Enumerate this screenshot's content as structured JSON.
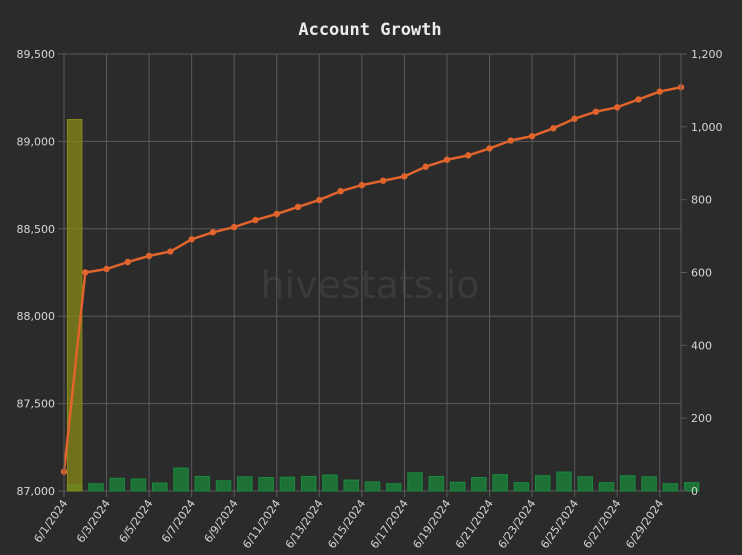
{
  "chart_data": {
    "type": "bar+line",
    "title": "Account Growth",
    "watermark": "hivestats.io",
    "x": [
      "6/1/2024",
      "6/2/2024",
      "6/3/2024",
      "6/4/2024",
      "6/5/2024",
      "6/6/2024",
      "6/7/2024",
      "6/8/2024",
      "6/9/2024",
      "6/10/2024",
      "6/11/2024",
      "6/12/2024",
      "6/13/2024",
      "6/14/2024",
      "6/15/2024",
      "6/16/2024",
      "6/17/2024",
      "6/18/2024",
      "6/19/2024",
      "6/20/2024",
      "6/21/2024",
      "6/22/2024",
      "6/23/2024",
      "6/24/2024",
      "6/25/2024",
      "6/26/2024",
      "6/27/2024",
      "6/28/2024",
      "6/29/2024",
      "6/30/2024"
    ],
    "x_tick_labels": [
      "6/1/2024",
      "6/3/2024",
      "6/5/2024",
      "6/7/2024",
      "6/9/2024",
      "6/11/2024",
      "6/13/2024",
      "6/15/2024",
      "6/17/2024",
      "6/19/2024",
      "6/21/2024",
      "6/23/2024",
      "6/25/2024",
      "6/27/2024",
      "6/29/2024"
    ],
    "y_left": {
      "min": 87000,
      "max": 89500,
      "ticks": [
        "87,000",
        "87,500",
        "88,000",
        "88,500",
        "89,000",
        "89,500"
      ]
    },
    "y_right": {
      "min": 0,
      "max": 1200,
      "ticks": [
        "0",
        "200",
        "400",
        "600",
        "800",
        "1,000",
        "1,200"
      ]
    },
    "grid": true,
    "line_series": {
      "axis": "left",
      "color": "#e0642c",
      "values": [
        87110,
        88250,
        88270,
        88310,
        88345,
        88370,
        88440,
        88480,
        88510,
        88550,
        88585,
        88625,
        88665,
        88715,
        88750,
        88775,
        88800,
        88855,
        88895,
        88920,
        88960,
        89005,
        89030,
        89075,
        89130,
        89170,
        89195,
        89240,
        89285,
        89310
      ]
    },
    "bar_series": [
      {
        "axis": "right",
        "color": "#1a8a3c",
        "values": [
          18,
          20,
          35,
          33,
          22,
          63,
          40,
          28,
          39,
          37,
          38,
          40,
          44,
          30,
          25,
          20,
          50,
          40,
          24,
          37,
          45,
          23,
          42,
          52,
          39,
          23,
          42,
          39,
          20,
          23
        ]
      },
      {
        "axis": "right",
        "color": "#8a8a1a",
        "values": [
          1020,
          0,
          0,
          0,
          0,
          0,
          0,
          0,
          0,
          0,
          0,
          0,
          0,
          0,
          0,
          0,
          0,
          0,
          0,
          0,
          0,
          0,
          0,
          0,
          0,
          0,
          0,
          0,
          0,
          0
        ]
      }
    ]
  }
}
